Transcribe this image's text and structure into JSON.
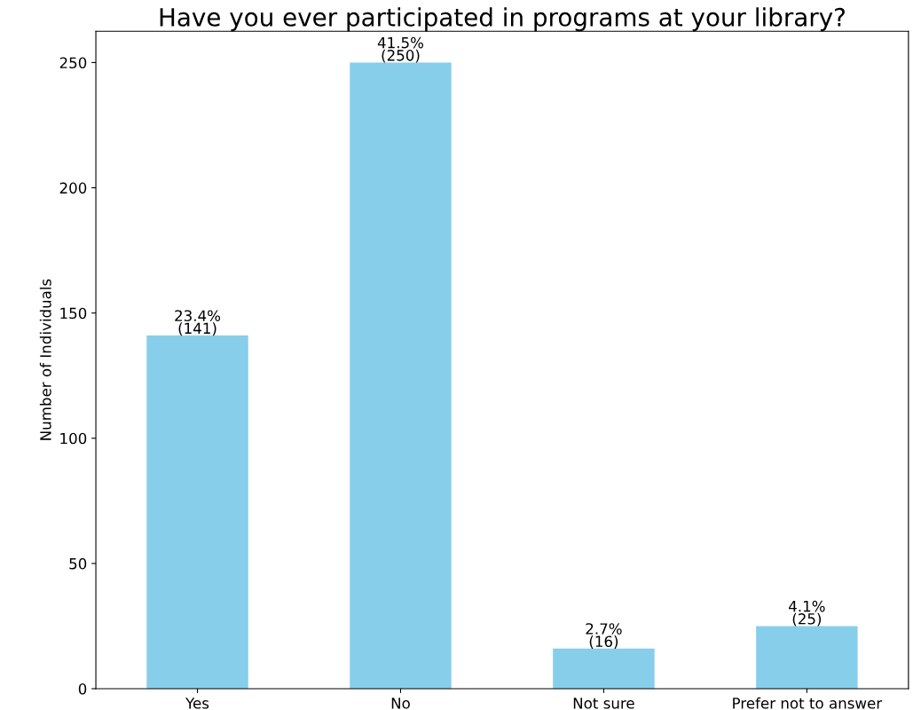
{
  "chart_data": {
    "type": "bar",
    "title": "Have you ever participated in programs at your library?",
    "ylabel": "Number of Individuals",
    "categories": [
      "Yes",
      "No",
      "Not sure",
      "Prefer not to answer"
    ],
    "values": [
      141,
      250,
      16,
      25
    ],
    "color": "#87ceeb",
    "value_labels": [
      "23.4%\n(141)",
      "41.5%\n(250)",
      "2.7%\n(16)",
      "4.1%\n(25)"
    ],
    "ylim": [
      0,
      262.5
    ],
    "yticks": [
      0,
      50,
      100,
      150,
      200,
      250
    ],
    "grid": false,
    "legend": false
  }
}
